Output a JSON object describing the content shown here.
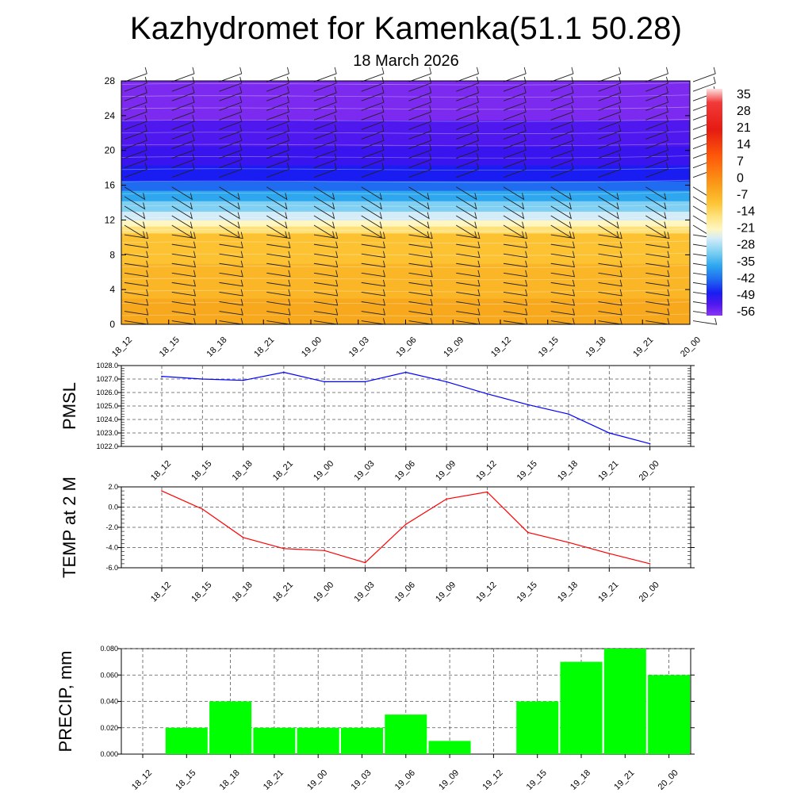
{
  "title": "Kazhydromet for Kamenka(51.1 50.28)",
  "subtitle": "18 March 2026",
  "chart_data": [
    {
      "type": "heatmap",
      "name": "temperature_wind_profile",
      "title": "",
      "ylabel": "",
      "x_ticks": [
        "18_12",
        "18_15",
        "18_18",
        "18_21",
        "19_00",
        "19_03",
        "19_06",
        "19_09",
        "19_12",
        "19_15",
        "19_18",
        "19_21",
        "20_00"
      ],
      "y_ticks": [
        "0",
        "4",
        "8",
        "12",
        "16",
        "20",
        "24",
        "28"
      ],
      "ylim": [
        0,
        28
      ],
      "colorbar_labels": [
        "35",
        "28",
        "21",
        "14",
        "7",
        "0",
        "-7",
        "-14",
        "-21",
        "-28",
        "-35",
        "-42",
        "-49",
        "-56"
      ],
      "bands": [
        {
          "from": 0,
          "to": 3,
          "color": "#f7a81c"
        },
        {
          "from": 3,
          "to": 7,
          "color": "#fbb627"
        },
        {
          "from": 7,
          "to": 10.5,
          "color": "#fdc232"
        },
        {
          "from": 10.5,
          "to": 11.3,
          "color": "#ffe17a"
        },
        {
          "from": 11.3,
          "to": 12,
          "color": "#fff6c2"
        },
        {
          "from": 12,
          "to": 13,
          "color": "#d3ecf8"
        },
        {
          "from": 13,
          "to": 14.2,
          "color": "#7fd0f2"
        },
        {
          "from": 14.2,
          "to": 15.4,
          "color": "#2ea7ef"
        },
        {
          "from": 15.4,
          "to": 16.5,
          "color": "#1f6cf0"
        },
        {
          "from": 16.5,
          "to": 18.3,
          "color": "#1a1df2"
        },
        {
          "from": 18.3,
          "to": 20.5,
          "color": "#3a14ee"
        },
        {
          "from": 20.5,
          "to": 23.5,
          "color": "#4f18ee"
        },
        {
          "from": 23.5,
          "to": 28,
          "color": "#7d2af0"
        }
      ]
    },
    {
      "type": "line",
      "name": "PMSL",
      "ylabel": "PMSL",
      "x": [
        "18_12",
        "18_15",
        "18_18",
        "18_21",
        "19_00",
        "19_03",
        "19_06",
        "19_09",
        "19_12",
        "19_15",
        "19_18",
        "19_21",
        "20_00"
      ],
      "values": [
        1027.2,
        1027.0,
        1026.9,
        1027.5,
        1026.8,
        1026.8,
        1027.5,
        1026.8,
        1025.9,
        1025.1,
        1024.4,
        1023.0,
        1022.2
      ],
      "ylim": [
        1022,
        1028
      ],
      "y_ticks": [
        "1022.0",
        "1023.0",
        "1024.0",
        "1025.0",
        "1026.0",
        "1027.0",
        "1028.0"
      ],
      "color": "#0000ff"
    },
    {
      "type": "line",
      "name": "TEMP at 2 M",
      "ylabel": "TEMP at 2 M",
      "x": [
        "18_12",
        "18_15",
        "18_18",
        "18_21",
        "19_00",
        "19_03",
        "19_06",
        "19_09",
        "19_12",
        "19_15",
        "19_18",
        "19_21",
        "20_00"
      ],
      "values": [
        1.6,
        -0.2,
        -3.0,
        -4.1,
        -4.3,
        -5.5,
        -1.7,
        0.8,
        1.5,
        -2.5,
        -3.5,
        -4.6,
        -5.6
      ],
      "ylim": [
        -6,
        2
      ],
      "y_ticks": [
        "-6.0",
        "-4.0",
        "-2.0",
        "0.0",
        "2.0"
      ],
      "color": "#ff0000"
    },
    {
      "type": "bar",
      "name": "PRECIP, mm",
      "ylabel": "PRECIP, mm",
      "categories": [
        "18_12",
        "18_15",
        "18_18",
        "18_21",
        "19_00",
        "19_03",
        "19_06",
        "19_09",
        "19_12",
        "19_15",
        "19_18",
        "19_21",
        "20_00"
      ],
      "values": [
        0,
        0.02,
        0.04,
        0.02,
        0.02,
        0.02,
        0.03,
        0.01,
        0,
        0.04,
        0.07,
        0.08,
        0.06
      ],
      "ylim": [
        0,
        0.08
      ],
      "y_ticks": [
        "0.000",
        "0.020",
        "0.040",
        "0.060",
        "0.080"
      ],
      "color": "#00ff00"
    }
  ]
}
